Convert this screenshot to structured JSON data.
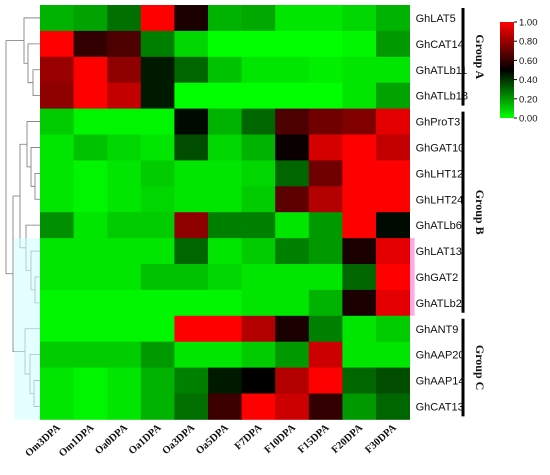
{
  "chart_data": {
    "type": "heatmap",
    "title": "",
    "xlabel": "",
    "ylabel": "",
    "columns": [
      "Om3DPA",
      "Om1DPA",
      "Oa0DPA",
      "Oa1DPA",
      "Oa3DPA",
      "Oa5DPA",
      "F7DPA",
      "F10DPA",
      "F15DPA",
      "F20DPA",
      "F30DPA"
    ],
    "rows": [
      "GhLAT5",
      "GhCAT14",
      "GhATLb11",
      "GhATLb18",
      "GhProT3",
      "GhGAT10",
      "GhLHT12",
      "GhLHT24",
      "GhATLb6",
      "GhLAT13",
      "GhGAT2",
      "GhATLb2",
      "GhANT9",
      "GhAAP20",
      "GhAAP14",
      "GhCAT13"
    ],
    "values": [
      [
        0.15,
        0.18,
        0.28,
        1.0,
        0.55,
        0.15,
        0.17,
        0.05,
        0.05,
        0.08,
        0.15
      ],
      [
        1.0,
        0.6,
        0.65,
        0.25,
        0.08,
        0.0,
        0.0,
        0.0,
        0.0,
        0.02,
        0.2
      ],
      [
        0.8,
        1.0,
        0.78,
        0.45,
        0.3,
        0.12,
        0.05,
        0.05,
        0.03,
        0.05,
        0.05
      ],
      [
        0.78,
        1.0,
        0.88,
        0.45,
        0.0,
        0.0,
        0.0,
        0.0,
        0.0,
        0.05,
        0.18
      ],
      [
        0.1,
        0.02,
        0.02,
        0.02,
        0.48,
        0.15,
        0.3,
        0.65,
        0.72,
        0.75,
        0.95
      ],
      [
        0.05,
        0.12,
        0.08,
        0.05,
        0.35,
        0.08,
        0.15,
        0.52,
        0.92,
        1.0,
        0.88
      ],
      [
        0.05,
        0.02,
        0.05,
        0.1,
        0.05,
        0.05,
        0.08,
        0.3,
        0.72,
        1.0,
        1.0
      ],
      [
        0.05,
        0.02,
        0.05,
        0.08,
        0.05,
        0.05,
        0.1,
        0.68,
        0.85,
        1.0,
        1.0
      ],
      [
        0.22,
        0.05,
        0.1,
        0.1,
        0.78,
        0.25,
        0.25,
        0.05,
        0.2,
        1.0,
        0.48
      ],
      [
        0.05,
        0.05,
        0.05,
        0.05,
        0.3,
        0.05,
        0.1,
        0.25,
        0.2,
        0.55,
        0.95
      ],
      [
        0.05,
        0.05,
        0.05,
        0.12,
        0.12,
        0.08,
        0.05,
        0.05,
        0.05,
        0.3,
        1.0
      ],
      [
        0.02,
        0.02,
        0.02,
        0.02,
        0.02,
        0.02,
        0.05,
        0.05,
        0.15,
        0.55,
        0.95
      ],
      [
        0.02,
        0.02,
        0.02,
        0.02,
        1.0,
        1.0,
        0.85,
        0.55,
        0.25,
        0.05,
        0.1
      ],
      [
        0.1,
        0.1,
        0.1,
        0.2,
        0.05,
        0.05,
        0.1,
        0.2,
        0.9,
        0.05,
        0.05
      ],
      [
        0.05,
        0.02,
        0.05,
        0.15,
        0.25,
        0.45,
        0.5,
        0.85,
        1.0,
        0.3,
        0.35
      ],
      [
        0.05,
        0.02,
        0.05,
        0.15,
        0.28,
        0.62,
        1.0,
        0.9,
        0.6,
        0.2,
        0.3
      ]
    ],
    "color_scale": {
      "min": 0.0,
      "max": 1.0,
      "ticks": [
        "1.00",
        "0.80",
        "0.60",
        "0.40",
        "0.20",
        "0.00"
      ],
      "low_color": "#00ff00",
      "mid_color": "#000000",
      "high_color": "#ff0000"
    },
    "groups": [
      {
        "label": "Group A",
        "from_row": 0,
        "to_row": 3
      },
      {
        "label": "Group B",
        "from_row": 4,
        "to_row": 11
      },
      {
        "label": "Group C",
        "from_row": 12,
        "to_row": 15
      }
    ],
    "highlight_colors": {
      "cyan": "#ccffff",
      "pink": "#ff66cc"
    },
    "grid": false,
    "legend_position": "top-right"
  }
}
